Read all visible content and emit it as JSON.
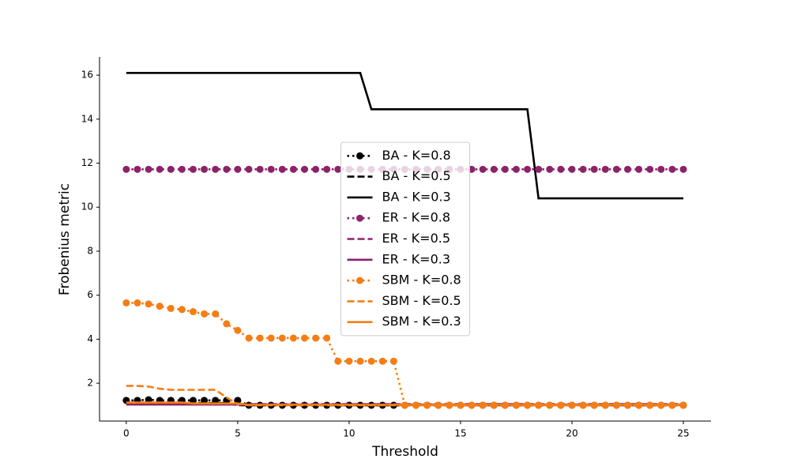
{
  "chart_data": {
    "type": "line",
    "xlabel": "Threshold",
    "ylabel": "Frobenius metric",
    "x": [
      0,
      0.5,
      1,
      1.5,
      2,
      2.5,
      3,
      3.5,
      4,
      4.5,
      5,
      5.5,
      6,
      6.5,
      7,
      7.5,
      8,
      8.5,
      9,
      9.5,
      10,
      10.5,
      11,
      11.5,
      12,
      12.5,
      13,
      13.5,
      14,
      14.5,
      15,
      15.5,
      16,
      16.5,
      17,
      17.5,
      18,
      18.5,
      19,
      19.5,
      20,
      20.5,
      21,
      21.5,
      22,
      22.5,
      23,
      23.5,
      24,
      24.5,
      25
    ],
    "xlim": [
      -1.2,
      26.24
    ],
    "xticks": [
      0,
      5,
      10,
      15,
      20,
      25
    ],
    "ylim": [
      0.28,
      16.83
    ],
    "yticks": [
      2,
      4,
      6,
      8,
      10,
      12,
      14,
      16
    ],
    "legend": "center",
    "series": [
      {
        "name": "BA - K=0.8",
        "color": "#000000",
        "linestyle": "dotted",
        "marker": "o",
        "values": [
          1.22,
          1.22,
          1.25,
          1.22,
          1.22,
          1.22,
          1.22,
          1.22,
          1.22,
          1.22,
          1.22,
          1,
          1,
          1,
          1,
          1,
          1,
          1,
          1,
          1,
          1,
          1,
          1,
          1,
          1,
          1,
          1,
          1,
          1,
          1,
          1,
          1,
          1,
          1,
          1,
          1,
          1,
          1,
          1,
          1,
          1,
          1,
          1,
          1,
          1,
          1,
          1,
          1,
          1,
          1,
          1
        ]
      },
      {
        "name": "BA - K=0.5",
        "color": "#000000",
        "linestyle": "dashed",
        "marker": "none",
        "values": [
          1.1,
          1.1,
          1.1,
          1.1,
          1.1,
          1.1,
          1.1,
          1.1,
          1.1,
          1.1,
          1,
          1,
          1,
          1,
          1,
          1,
          1,
          1,
          1,
          1,
          1,
          1,
          1,
          1,
          1,
          1,
          1,
          1,
          1,
          1,
          1,
          1,
          1,
          1,
          1,
          1,
          1,
          1,
          1,
          1,
          1,
          1,
          1,
          1,
          1,
          1,
          1,
          1,
          1,
          1,
          1
        ]
      },
      {
        "name": "BA - K=0.3",
        "color": "#000000",
        "linestyle": "solid",
        "marker": "none",
        "values": [
          16.1,
          16.1,
          16.1,
          16.1,
          16.1,
          16.1,
          16.1,
          16.1,
          16.1,
          16.1,
          16.1,
          16.1,
          16.1,
          16.1,
          16.1,
          16.1,
          16.1,
          16.1,
          16.1,
          16.1,
          16.1,
          16.1,
          14.45,
          14.45,
          14.45,
          14.45,
          14.45,
          14.45,
          14.45,
          14.45,
          14.45,
          14.45,
          14.45,
          14.45,
          14.45,
          14.45,
          14.45,
          10.4,
          10.4,
          10.4,
          10.4,
          10.4,
          10.4,
          10.4,
          10.4,
          10.4,
          10.4,
          10.4,
          10.4,
          10.4,
          10.4
        ]
      },
      {
        "name": "ER - K=0.8",
        "color": "#8c2369",
        "linestyle": "dotted",
        "marker": "o",
        "values": [
          11.72,
          11.72,
          11.72,
          11.72,
          11.72,
          11.72,
          11.72,
          11.72,
          11.72,
          11.72,
          11.72,
          11.72,
          11.72,
          11.72,
          11.72,
          11.72,
          11.72,
          11.72,
          11.72,
          11.72,
          11.72,
          11.72,
          11.72,
          11.72,
          11.72,
          11.72,
          11.72,
          11.72,
          11.72,
          11.72,
          11.72,
          11.72,
          11.72,
          11.72,
          11.72,
          11.72,
          11.72,
          11.72,
          11.72,
          11.72,
          11.72,
          11.72,
          11.72,
          11.72,
          11.72,
          11.72,
          11.72,
          11.72,
          11.72,
          11.72,
          11.72
        ]
      },
      {
        "name": "ER - K=0.5",
        "color": "#8c2369",
        "linestyle": "dashed",
        "marker": "none",
        "values": [
          1.05,
          1.05,
          1.05,
          1.05,
          1.05,
          1.05,
          1.05,
          1.05,
          1.05,
          1.05,
          1.05,
          1.05,
          1.05,
          1.05,
          1.05,
          1.05,
          1.05,
          1.05,
          1.05,
          1.05,
          1.05,
          1.05,
          1.05,
          1.05,
          1.05,
          1.05,
          1.05,
          1.05,
          1.05,
          1.05,
          1.05,
          1.05,
          1.05,
          1.05,
          1.05,
          1.05,
          1.05,
          1.05,
          1.05,
          1.05,
          1.05,
          1.05,
          1.05,
          1.05,
          1.05,
          1.05,
          1.05,
          1.05,
          1.05,
          1.05,
          1.05
        ]
      },
      {
        "name": "ER - K=0.3",
        "color": "#8c2369",
        "linestyle": "solid",
        "marker": "none",
        "values": [
          1.03,
          1.03,
          1.03,
          1.03,
          1.03,
          1.03,
          1.03,
          1.03,
          1.03,
          1.03,
          1.03,
          1.03,
          1.03,
          1.03,
          1.03,
          1.03,
          1.03,
          1.03,
          1.03,
          1.03,
          1.03,
          1.03,
          1.03,
          1.03,
          1.03,
          1.03,
          1.03,
          1.03,
          1.03,
          1.03,
          1.03,
          1.03,
          1.03,
          1.03,
          1.03,
          1.03,
          1.03,
          1.03,
          1.03,
          1.03,
          1.03,
          1.03,
          1.03,
          1.03,
          1.03,
          1.03,
          1.03,
          1.03,
          1.03,
          1.03,
          1.03
        ]
      },
      {
        "name": "SBM - K=0.8",
        "color": "#f57d15",
        "linestyle": "dotted",
        "marker": "o",
        "values": [
          5.65,
          5.65,
          5.6,
          5.5,
          5.4,
          5.35,
          5.25,
          5.15,
          5.15,
          4.7,
          4.4,
          4.05,
          4.05,
          4.05,
          4.05,
          4.05,
          4.05,
          4.05,
          4.05,
          3,
          3,
          3,
          3,
          3,
          3,
          1,
          1,
          1,
          1,
          1,
          1,
          1,
          1,
          1,
          1,
          1,
          1,
          1,
          1,
          1,
          1,
          1,
          1,
          1,
          1,
          1,
          1,
          1,
          1,
          1,
          1
        ]
      },
      {
        "name": "SBM - K=0.5",
        "color": "#f57d15",
        "linestyle": "dashed",
        "marker": "none",
        "values": [
          1.88,
          1.88,
          1.85,
          1.75,
          1.7,
          1.7,
          1.7,
          1.7,
          1.7,
          1.35,
          1.05,
          1,
          1,
          1,
          1,
          1,
          1,
          1,
          1,
          1,
          1,
          1,
          1,
          1,
          1,
          1,
          1,
          1,
          1,
          1,
          1,
          1,
          1,
          1,
          1,
          1,
          1,
          1,
          1,
          1,
          1,
          1,
          1,
          1,
          1,
          1,
          1,
          1,
          1,
          1,
          1
        ]
      },
      {
        "name": "SBM - K=0.3",
        "color": "#f57d15",
        "linestyle": "solid",
        "marker": "none",
        "values": [
          1.12,
          1.12,
          1.12,
          1.12,
          1.12,
          1.12,
          1.08,
          1.08,
          1.08,
          1.08,
          1.08,
          1.02,
          1.02,
          1.02,
          1.02,
          1.02,
          1.02,
          1.02,
          1.02,
          1.02,
          1.02,
          1.02,
          1.02,
          1.02,
          1.02,
          1.02,
          1.02,
          1.02,
          1.02,
          1.02,
          1.02,
          1.02,
          1.02,
          1.02,
          1.02,
          1.02,
          1.02,
          1.02,
          1.02,
          1.02,
          1.02,
          1.02,
          1.02,
          1.02,
          1.02,
          1.02,
          1.02,
          1.02,
          1.02,
          1.02,
          1.02
        ]
      }
    ]
  }
}
